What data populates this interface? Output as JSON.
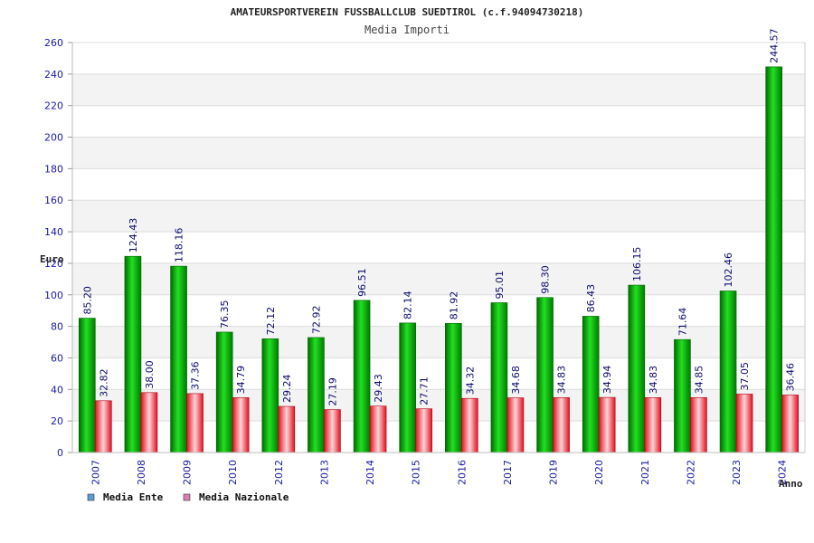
{
  "chart_data": {
    "type": "bar",
    "title": "AMATEURSPORTVEREIN FUSSBALLCLUB SUEDTIROL (c.f.94094730218)",
    "subtitle": "Media Importi",
    "ylabel": "Euro",
    "xlabel": "Anno",
    "ylim": [
      0,
      260
    ],
    "yticks": [
      "0",
      "20",
      "40",
      "60",
      "80",
      "100",
      "120",
      "140",
      "160",
      "180",
      "200",
      "220",
      "240",
      "260"
    ],
    "grid": true,
    "legend_position": "bottom-left",
    "categories": [
      "2007",
      "2008",
      "2009",
      "2010",
      "2012",
      "2013",
      "2014",
      "2015",
      "2016",
      "2017",
      "2019",
      "2020",
      "2021",
      "2022",
      "2023",
      "2024"
    ],
    "series": [
      {
        "name": "Media Ente",
        "color": "#0fbf0f",
        "legend_color": "#5b9bd5",
        "values": [
          85.2,
          124.43,
          118.16,
          76.35,
          72.12,
          72.92,
          96.51,
          82.14,
          81.92,
          95.01,
          98.3,
          86.43,
          106.15,
          71.64,
          102.46,
          244.57
        ],
        "labels": [
          "85.20",
          "124.43",
          "118.16",
          "76.35",
          "72.12",
          "72.92",
          "96.51",
          "82.14",
          "81.92",
          "95.01",
          "98.30",
          "86.43",
          "106.15",
          "71.64",
          "102.46",
          "244.57"
        ]
      },
      {
        "name": "Media Nazionale",
        "color": "#e8182a",
        "legend_color": "#d97fb0",
        "values": [
          32.82,
          38.0,
          37.36,
          34.79,
          29.24,
          27.19,
          29.43,
          27.71,
          34.32,
          34.68,
          34.83,
          34.94,
          34.83,
          34.85,
          37.05,
          36.46
        ],
        "labels": [
          "32.82",
          "38.00",
          "37.36",
          "34.79",
          "29.24",
          "27.19",
          "29.43",
          "27.71",
          "34.32",
          "34.68",
          "34.83",
          "34.94",
          "34.83",
          "34.85",
          "37.05",
          "36.46"
        ]
      }
    ]
  }
}
